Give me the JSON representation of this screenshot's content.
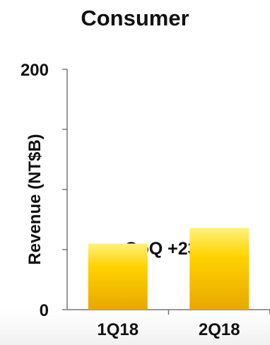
{
  "chart_data": {
    "type": "bar",
    "title": "Consumer",
    "xlabel": "",
    "ylabel": "Revenue (NT$B)",
    "categories": [
      "1Q18",
      "2Q18"
    ],
    "values": [
      55,
      68
    ],
    "ylim": [
      0,
      200
    ],
    "yticks": [
      0,
      50,
      100,
      150,
      200
    ],
    "ytick_labels_shown": [
      "0",
      "200"
    ],
    "grid": false,
    "legend": "none",
    "annotation": "QoQ +23%",
    "colors": {
      "bar": "#FFD200",
      "bar_highlight": "#FFF27A",
      "bar_shadow": "#E8A800",
      "axis": "#777777",
      "text": "#111111"
    }
  }
}
